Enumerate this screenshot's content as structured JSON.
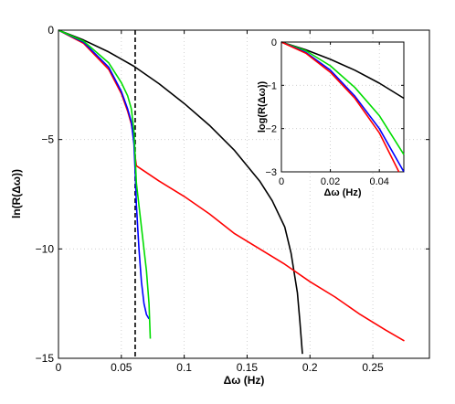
{
  "chart_data": [
    {
      "type": "line",
      "title": "",
      "xlabel": "Δω (Hz)",
      "ylabel": "ln(R(Δω))",
      "xlim": [
        0,
        0.295
      ],
      "ylim": [
        -15,
        0
      ],
      "x_ticks": [
        0,
        0.05,
        0.1,
        0.15,
        0.2,
        0.25
      ],
      "x_tick_labels": [
        "0",
        "0.05",
        "0.1",
        "0.15",
        "0.2",
        "0.25"
      ],
      "y_ticks": [
        -15,
        -10,
        -5,
        0
      ],
      "y_tick_labels": [
        "−15",
        "−10",
        "−5",
        "0"
      ],
      "grid": true,
      "vline": {
        "x": 0.061,
        "style": "dashed",
        "color": "#000000"
      },
      "series": [
        {
          "color": "#000000",
          "points": [
            [
              0,
              0
            ],
            [
              0.02,
              -0.45
            ],
            [
              0.04,
              -1.0
            ],
            [
              0.06,
              -1.65
            ],
            [
              0.08,
              -2.45
            ],
            [
              0.1,
              -3.35
            ],
            [
              0.12,
              -4.35
            ],
            [
              0.14,
              -5.5
            ],
            [
              0.16,
              -6.9
            ],
            [
              0.17,
              -7.8
            ],
            [
              0.18,
              -9.0
            ],
            [
              0.185,
              -10.2
            ],
            [
              0.19,
              -12.0
            ],
            [
              0.192,
              -13.3
            ],
            [
              0.194,
              -14.8
            ]
          ]
        },
        {
          "color": "#ff0000",
          "points": [
            [
              0,
              0
            ],
            [
              0.02,
              -0.6
            ],
            [
              0.04,
              -1.8
            ],
            [
              0.05,
              -2.9
            ],
            [
              0.055,
              -3.7
            ],
            [
              0.058,
              -4.3
            ],
            [
              0.06,
              -5.0
            ],
            [
              0.061,
              -5.8
            ],
            [
              0.062,
              -6.2
            ],
            [
              0.08,
              -6.9
            ],
            [
              0.1,
              -7.6
            ],
            [
              0.12,
              -8.4
            ],
            [
              0.14,
              -9.3
            ],
            [
              0.16,
              -10.0
            ],
            [
              0.18,
              -10.7
            ],
            [
              0.2,
              -11.5
            ],
            [
              0.22,
              -12.2
            ],
            [
              0.24,
              -13.0
            ],
            [
              0.26,
              -13.7
            ],
            [
              0.275,
              -14.2
            ]
          ]
        },
        {
          "color": "#0000ff",
          "points": [
            [
              0,
              0
            ],
            [
              0.02,
              -0.55
            ],
            [
              0.04,
              -1.7
            ],
            [
              0.05,
              -2.8
            ],
            [
              0.055,
              -3.6
            ],
            [
              0.058,
              -4.2
            ],
            [
              0.06,
              -5.2
            ],
            [
              0.061,
              -6.5
            ],
            [
              0.062,
              -8.0
            ],
            [
              0.064,
              -10.0
            ],
            [
              0.066,
              -11.5
            ],
            [
              0.068,
              -12.5
            ],
            [
              0.07,
              -13.0
            ],
            [
              0.072,
              -13.2
            ]
          ]
        },
        {
          "color": "#00dd00",
          "points": [
            [
              0,
              0
            ],
            [
              0.02,
              -0.5
            ],
            [
              0.04,
              -1.5
            ],
            [
              0.05,
              -2.4
            ],
            [
              0.055,
              -3.0
            ],
            [
              0.058,
              -3.6
            ],
            [
              0.06,
              -4.6
            ],
            [
              0.061,
              -5.8
            ],
            [
              0.062,
              -7.0
            ],
            [
              0.066,
              -9.0
            ],
            [
              0.07,
              -11.0
            ],
            [
              0.072,
              -12.5
            ],
            [
              0.073,
              -14.1
            ]
          ]
        }
      ]
    },
    {
      "type": "line",
      "title": "",
      "xlabel": "Δω (Hz)",
      "ylabel": "log(R(Δω))",
      "xlim": [
        0,
        0.05
      ],
      "ylim": [
        -3,
        0
      ],
      "x_ticks": [
        0,
        0.02,
        0.04
      ],
      "x_tick_labels": [
        "0",
        "0.02",
        "0.04"
      ],
      "y_ticks": [
        -3,
        -2,
        -1,
        0
      ],
      "y_tick_labels": [
        "−3",
        "−2",
        "−1",
        "0"
      ],
      "grid": true,
      "series": [
        {
          "color": "#000000",
          "points": [
            [
              0,
              0
            ],
            [
              0.01,
              -0.18
            ],
            [
              0.02,
              -0.4
            ],
            [
              0.03,
              -0.65
            ],
            [
              0.04,
              -0.95
            ],
            [
              0.05,
              -1.3
            ]
          ]
        },
        {
          "color": "#00dd00",
          "points": [
            [
              0,
              0
            ],
            [
              0.01,
              -0.2
            ],
            [
              0.02,
              -0.55
            ],
            [
              0.03,
              -1.05
            ],
            [
              0.04,
              -1.7
            ],
            [
              0.05,
              -2.6
            ]
          ]
        },
        {
          "color": "#0000ff",
          "points": [
            [
              0,
              0
            ],
            [
              0.01,
              -0.24
            ],
            [
              0.02,
              -0.65
            ],
            [
              0.03,
              -1.25
            ],
            [
              0.04,
              -2.0
            ],
            [
              0.05,
              -3.0
            ]
          ]
        },
        {
          "color": "#ff0000",
          "points": [
            [
              0,
              0
            ],
            [
              0.01,
              -0.26
            ],
            [
              0.02,
              -0.7
            ],
            [
              0.03,
              -1.3
            ],
            [
              0.04,
              -2.1
            ],
            [
              0.048,
              -3.0
            ]
          ]
        }
      ]
    }
  ]
}
